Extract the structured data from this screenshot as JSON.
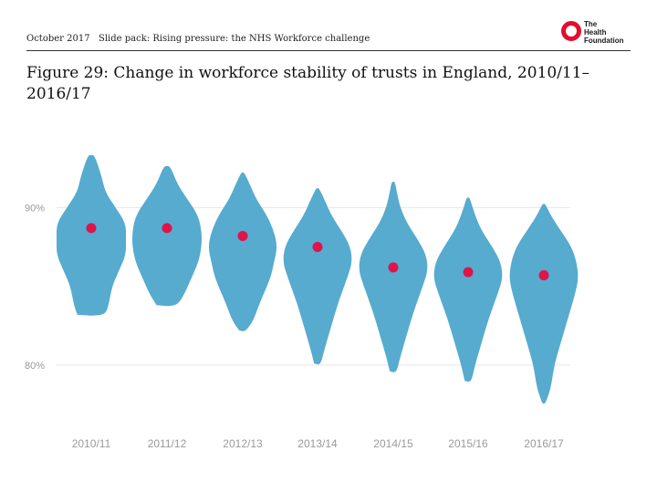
{
  "header": {
    "date": "October 2017",
    "title": "Slide pack: Rising pressure: the NHS Workforce challenge",
    "logo_lines": [
      "The",
      "Health",
      "Foundation"
    ]
  },
  "figure_title": "Figure 29: Change in workforce stability of trusts in England, 2010/11–2016/17",
  "colors": {
    "violin": "#56abcf",
    "median": "#e0134a",
    "grid": "#e6e6e6",
    "logo_red": "#e20e2e"
  },
  "chart_data": {
    "type": "violin",
    "title": "Figure 29: Change in workforce stability of trusts in England, 2010/11–2016/17",
    "xlabel": "",
    "ylabel": "",
    "categories": [
      "2010/11",
      "2011/12",
      "2012/13",
      "2013/14",
      "2014/15",
      "2015/16",
      "2016/17"
    ],
    "y_ticks": [
      {
        "value": 80,
        "label": "80%"
      },
      {
        "value": 90,
        "label": "90%"
      }
    ],
    "ylim": [
      76.8,
      94.2
    ],
    "grid": true,
    "medians": [
      88.7,
      88.7,
      88.2,
      87.5,
      86.2,
      85.9,
      85.7
    ],
    "ranges": [
      [
        83.2,
        93.3
      ],
      [
        83.8,
        92.6
      ],
      [
        82.2,
        92.2
      ],
      [
        80.1,
        91.2
      ],
      [
        79.6,
        91.6
      ],
      [
        79.0,
        90.6
      ],
      [
        77.6,
        90.2
      ]
    ],
    "densities": [
      [
        [
          83.2,
          0.4
        ],
        [
          83.8,
          0.5
        ],
        [
          85.0,
          0.6
        ],
        [
          86.0,
          0.8
        ],
        [
          87.0,
          1.0
        ],
        [
          88.0,
          1.0
        ],
        [
          89.0,
          1.0
        ],
        [
          90.0,
          0.7
        ],
        [
          91.0,
          0.4
        ],
        [
          92.0,
          0.3
        ],
        [
          93.3,
          0.1
        ]
      ],
      [
        [
          83.8,
          0.3
        ],
        [
          84.5,
          0.5
        ],
        [
          85.5,
          0.7
        ],
        [
          86.5,
          0.9
        ],
        [
          87.5,
          1.0
        ],
        [
          88.5,
          1.0
        ],
        [
          89.5,
          0.9
        ],
        [
          90.5,
          0.6
        ],
        [
          91.5,
          0.3
        ],
        [
          92.6,
          0.1
        ]
      ],
      [
        [
          82.2,
          0.1
        ],
        [
          82.8,
          0.3
        ],
        [
          84.0,
          0.5
        ],
        [
          85.5,
          0.8
        ],
        [
          86.5,
          0.9
        ],
        [
          87.5,
          1.0
        ],
        [
          88.5,
          0.9
        ],
        [
          89.5,
          0.7
        ],
        [
          90.5,
          0.4
        ],
        [
          91.5,
          0.2
        ],
        [
          92.2,
          0.05
        ]
      ],
      [
        [
          80.1,
          0.1
        ],
        [
          81.0,
          0.2
        ],
        [
          82.5,
          0.4
        ],
        [
          84.0,
          0.6
        ],
        [
          85.5,
          0.85
        ],
        [
          86.5,
          1.0
        ],
        [
          87.5,
          0.95
        ],
        [
          88.5,
          0.7
        ],
        [
          89.5,
          0.4
        ],
        [
          90.5,
          0.2
        ],
        [
          91.2,
          0.05
        ]
      ],
      [
        [
          79.6,
          0.1
        ],
        [
          80.5,
          0.2
        ],
        [
          82.0,
          0.4
        ],
        [
          83.5,
          0.6
        ],
        [
          85.0,
          0.85
        ],
        [
          86.0,
          1.0
        ],
        [
          87.0,
          0.95
        ],
        [
          88.0,
          0.7
        ],
        [
          89.0,
          0.4
        ],
        [
          90.0,
          0.2
        ],
        [
          91.0,
          0.1
        ],
        [
          91.6,
          0.05
        ]
      ],
      [
        [
          79.0,
          0.1
        ],
        [
          80.0,
          0.2
        ],
        [
          81.5,
          0.4
        ],
        [
          83.0,
          0.6
        ],
        [
          84.5,
          0.85
        ],
        [
          85.5,
          1.0
        ],
        [
          86.5,
          0.95
        ],
        [
          87.5,
          0.7
        ],
        [
          88.5,
          0.4
        ],
        [
          89.5,
          0.2
        ],
        [
          90.6,
          0.05
        ]
      ],
      [
        [
          77.6,
          0.05
        ],
        [
          78.5,
          0.2
        ],
        [
          80.0,
          0.3
        ],
        [
          81.5,
          0.5
        ],
        [
          83.0,
          0.7
        ],
        [
          84.5,
          0.9
        ],
        [
          85.5,
          1.0
        ],
        [
          86.5,
          0.95
        ],
        [
          87.5,
          0.8
        ],
        [
          88.5,
          0.5
        ],
        [
          89.5,
          0.2
        ],
        [
          90.2,
          0.05
        ]
      ]
    ]
  }
}
